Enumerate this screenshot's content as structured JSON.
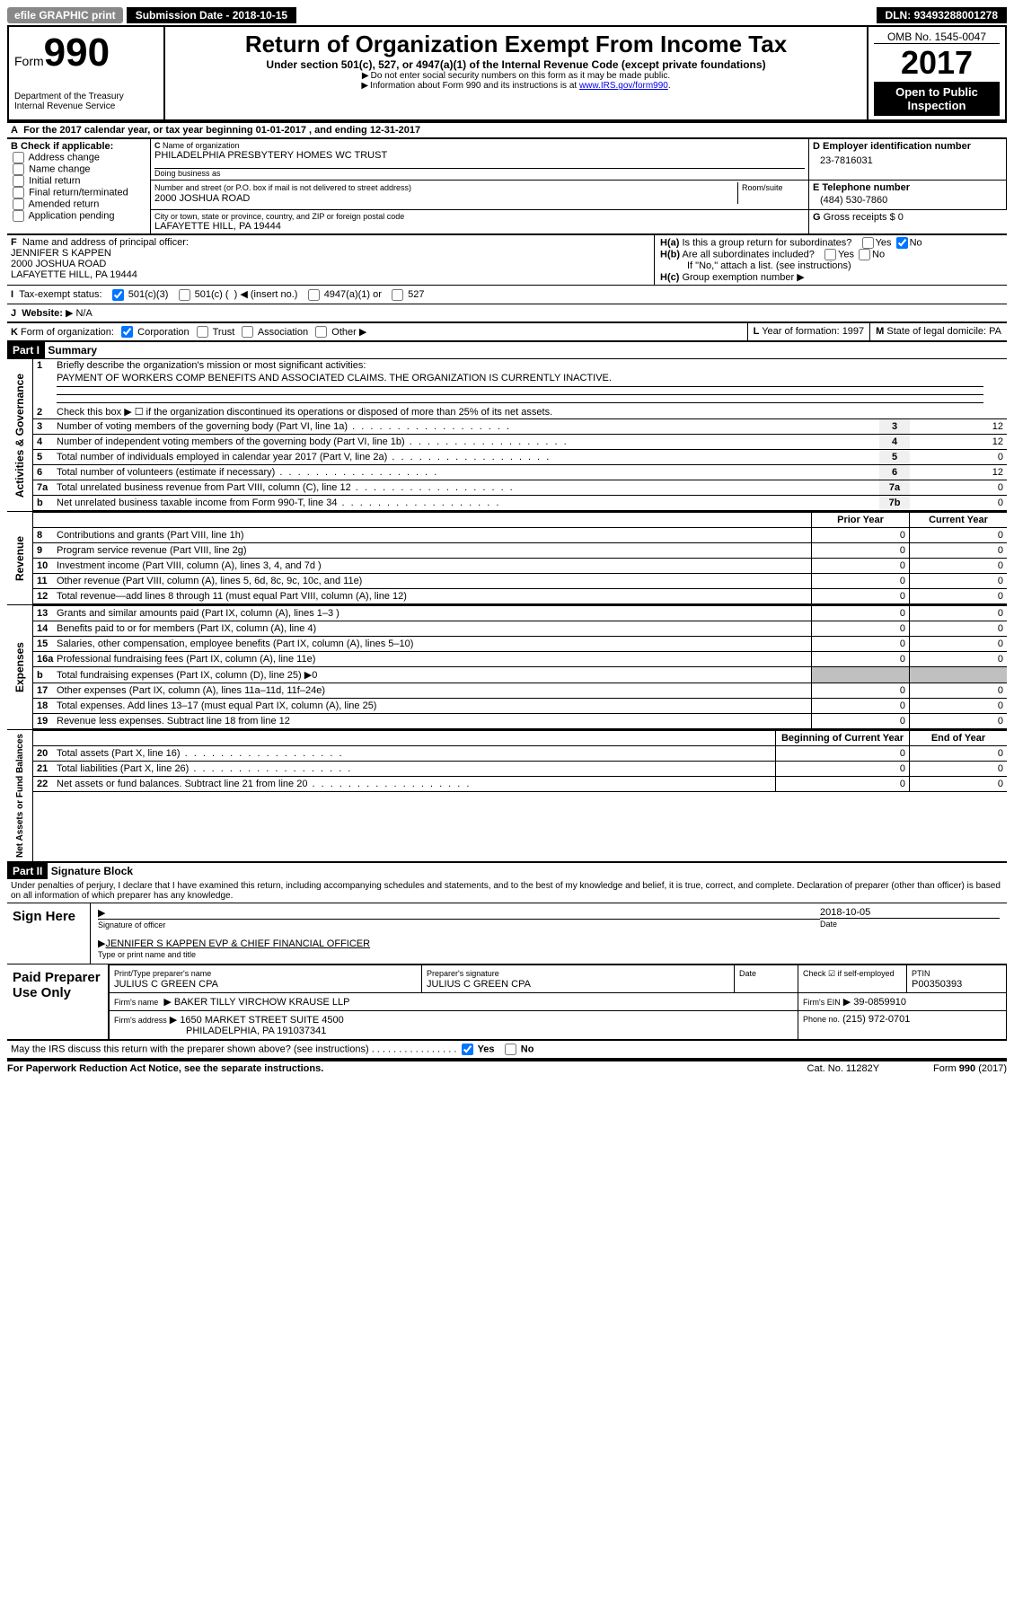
{
  "topbar": {
    "efile": "efile GRAPHIC print",
    "submission_label": "Submission Date",
    "submission_date": "2018-10-15",
    "dln_label": "DLN:",
    "dln": "93493288001278"
  },
  "header": {
    "form_prefix": "Form",
    "form_number": "990",
    "dept": "Department of the Treasury",
    "irs": "Internal Revenue Service",
    "title": "Return of Organization Exempt From Income Tax",
    "subtitle": "Under section 501(c), 527, or 4947(a)(1) of the Internal Revenue Code (except private foundations)",
    "note1": "Do not enter social security numbers on this form as it may be made public.",
    "note2": "Information about Form 990 and its instructions is at ",
    "note2_link": "www.IRS.gov/form990",
    "omb_label": "OMB No. 1545-0047",
    "year": "2017",
    "open": "Open to Public Inspection"
  },
  "section_a": {
    "line_a": "For the 2017 calendar year, or tax year beginning 01-01-2017   , and ending 12-31-2017",
    "b_label": "Check if applicable:",
    "b_opts": [
      "Address change",
      "Name change",
      "Initial return",
      "Final return/terminated",
      "Amended return",
      "Application pending"
    ],
    "c_name_label": "Name of organization",
    "c_name": "PHILADELPHIA PRESBYTERY HOMES WC TRUST",
    "c_dba_label": "Doing business as",
    "c_addr_label": "Number and street (or P.O. box if mail is not delivered to street address)",
    "c_room_label": "Room/suite",
    "c_addr": "2000 JOSHUA ROAD",
    "c_city_label": "City or town, state or province, country, and ZIP or foreign postal code",
    "c_city": "LAFAYETTE HILL, PA  19444",
    "d_label": "Employer identification number",
    "d_ein": "23-7816031",
    "e_label": "Telephone number",
    "e_phone": "(484) 530-7860",
    "g_label": "Gross receipts $",
    "g_val": "0",
    "f_label": "Name and address of principal officer:",
    "f_name": "JENNIFER S KAPPEN",
    "f_addr1": "2000 JOSHUA ROAD",
    "f_addr2": "LAFAYETTE HILL, PA  19444",
    "h_a": "Is this a group return for subordinates?",
    "h_b": "Are all subordinates included?",
    "h_b_note": "If \"No,\" attach a list. (see instructions)",
    "h_c": "Group exemption number",
    "yes": "Yes",
    "no": "No",
    "i_label": "Tax-exempt status:",
    "i_opts": [
      "501(c)(3)",
      "501(c) (",
      "(insert no.)",
      "4947(a)(1) or",
      "527"
    ],
    "j_label": "Website:",
    "j_val": "N/A",
    "k_label": "Form of organization:",
    "k_opts": [
      "Corporation",
      "Trust",
      "Association",
      "Other"
    ],
    "l_label": "Year of formation:",
    "l_val": "1997",
    "m_label": "State of legal domicile:",
    "m_val": "PA"
  },
  "part1": {
    "title": "Part I",
    "title2": "Summary",
    "side_labels": [
      "Activities & Governance",
      "Revenue",
      "Expenses",
      "Net Assets or Fund Balances"
    ],
    "line1": "Briefly describe the organization's mission or most significant activities:",
    "line1_val": "PAYMENT OF WORKERS COMP BENEFITS AND ASSOCIATED CLAIMS. THE ORGANIZATION IS CURRENTLY INACTIVE.",
    "line2": "Check this box ▶ ☐  if the organization discontinued its operations or disposed of more than 25% of its net assets.",
    "gov_rows": [
      {
        "n": "3",
        "desc": "Number of voting members of the governing body (Part VI, line 1a)",
        "box": "3",
        "val": "12"
      },
      {
        "n": "4",
        "desc": "Number of independent voting members of the governing body (Part VI, line 1b)",
        "box": "4",
        "val": "12"
      },
      {
        "n": "5",
        "desc": "Total number of individuals employed in calendar year 2017 (Part V, line 2a)",
        "box": "5",
        "val": "0"
      },
      {
        "n": "6",
        "desc": "Total number of volunteers (estimate if necessary)",
        "box": "6",
        "val": "12"
      },
      {
        "n": "7a",
        "desc": "Total unrelated business revenue from Part VIII, column (C), line 12",
        "box": "7a",
        "val": "0"
      },
      {
        "n": "b",
        "desc": "Net unrelated business taxable income from Form 990-T, line 34",
        "box": "7b",
        "val": "0"
      }
    ],
    "prior_year": "Prior Year",
    "current_year": "Current Year",
    "rev_rows": [
      {
        "n": "8",
        "desc": "Contributions and grants (Part VIII, line 1h)",
        "p": "0",
        "c": "0"
      },
      {
        "n": "9",
        "desc": "Program service revenue (Part VIII, line 2g)",
        "p": "0",
        "c": "0"
      },
      {
        "n": "10",
        "desc": "Investment income (Part VIII, column (A), lines 3, 4, and 7d )",
        "p": "0",
        "c": "0"
      },
      {
        "n": "11",
        "desc": "Other revenue (Part VIII, column (A), lines 5, 6d, 8c, 9c, 10c, and 11e)",
        "p": "0",
        "c": "0"
      },
      {
        "n": "12",
        "desc": "Total revenue—add lines 8 through 11 (must equal Part VIII, column (A), line 12)",
        "p": "0",
        "c": "0"
      }
    ],
    "exp_rows": [
      {
        "n": "13",
        "desc": "Grants and similar amounts paid (Part IX, column (A), lines 1–3 )",
        "p": "0",
        "c": "0"
      },
      {
        "n": "14",
        "desc": "Benefits paid to or for members (Part IX, column (A), line 4)",
        "p": "0",
        "c": "0"
      },
      {
        "n": "15",
        "desc": "Salaries, other compensation, employee benefits (Part IX, column (A), lines 5–10)",
        "p": "0",
        "c": "0"
      },
      {
        "n": "16a",
        "desc": "Professional fundraising fees (Part IX, column (A), line 11e)",
        "p": "0",
        "c": "0"
      },
      {
        "n": "b",
        "desc": "Total fundraising expenses (Part IX, column (D), line 25) ▶0",
        "p": "",
        "c": "",
        "grey": true
      },
      {
        "n": "17",
        "desc": "Other expenses (Part IX, column (A), lines 11a–11d, 11f–24e)",
        "p": "0",
        "c": "0"
      },
      {
        "n": "18",
        "desc": "Total expenses. Add lines 13–17 (must equal Part IX, column (A), line 25)",
        "p": "0",
        "c": "0"
      },
      {
        "n": "19",
        "desc": "Revenue less expenses. Subtract line 18 from line 12",
        "p": "0",
        "c": "0"
      }
    ],
    "beg_year": "Beginning of Current Year",
    "end_year": "End of Year",
    "net_rows": [
      {
        "n": "20",
        "desc": "Total assets (Part X, line 16)",
        "p": "0",
        "c": "0"
      },
      {
        "n": "21",
        "desc": "Total liabilities (Part X, line 26)",
        "p": "0",
        "c": "0"
      },
      {
        "n": "22",
        "desc": "Net assets or fund balances. Subtract line 21 from line 20",
        "p": "0",
        "c": "0"
      }
    ]
  },
  "part2": {
    "title": "Part II",
    "title2": "Signature Block",
    "perjury": "Under penalties of perjury, I declare that I have examined this return, including accompanying schedules and statements, and to the best of my knowledge and belief, it is true, correct, and complete. Declaration of preparer (other than officer) is based on all information of which preparer has any knowledge.",
    "sign_here": "Sign Here",
    "sig_officer": "Signature of officer",
    "sig_date_label": "Date",
    "sig_date": "2018-10-05",
    "officer_name": "JENNIFER S KAPPEN  EVP & CHIEF FINANCIAL OFFICER",
    "type_name": "Type or print name and title",
    "paid": "Paid Preparer Use Only",
    "prep_name_label": "Print/Type preparer's name",
    "prep_name": "JULIUS C GREEN CPA",
    "prep_sig_label": "Preparer's signature",
    "prep_sig": "JULIUS C GREEN CPA",
    "date_label": "Date",
    "check_self": "Check ☑ if self-employed",
    "ptin_label": "PTIN",
    "ptin": "P00350393",
    "firm_name_label": "Firm's name",
    "firm_name": "BAKER TILLY VIRCHOW KRAUSE LLP",
    "firm_ein_label": "Firm's EIN",
    "firm_ein": "39-0859910",
    "firm_addr_label": "Firm's address",
    "firm_addr1": "1650 MARKET STREET SUITE 4500",
    "firm_addr2": "PHILADELPHIA, PA  191037341",
    "phone_label": "Phone no.",
    "phone": "(215) 972-0701",
    "discuss": "May the IRS discuss this return with the preparer shown above? (see instructions)"
  },
  "footer": {
    "pra": "For Paperwork Reduction Act Notice, see the separate instructions.",
    "cat": "Cat. No. 11282Y",
    "form": "Form 990 (2017)"
  }
}
